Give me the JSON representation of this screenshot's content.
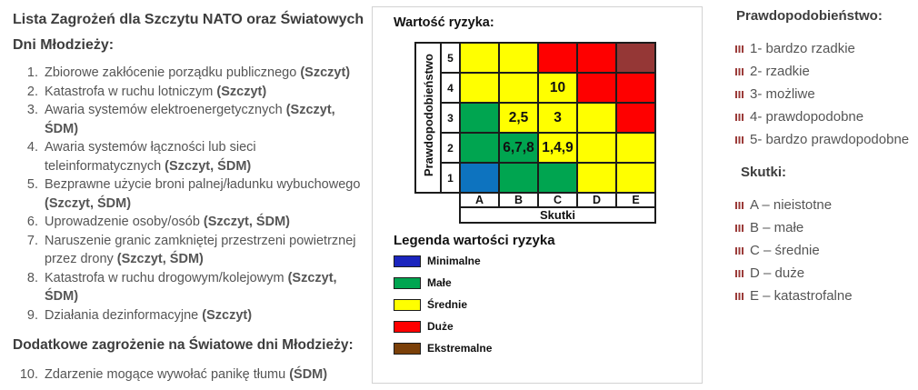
{
  "left": {
    "title_lines": [
      "Lista Zagrożeń dla Szczytu NATO oraz Światowych",
      "Dni Młodzieży:"
    ],
    "items": [
      {
        "number": "1.",
        "text": "Zbiorowe zakłócenie porządku publicznego",
        "tag": "(Szczyt)"
      },
      {
        "number": "2.",
        "text": "Katastrofa w ruchu lotniczym",
        "tag": "(Szczyt)"
      },
      {
        "number": "3.",
        "text": "Awaria systemów elektroenergetycznych",
        "tag": "(Szczyt, ŚDM)"
      },
      {
        "number": "4.",
        "text": "Awaria systemów łączności lub sieci teleinformatycznych",
        "tag": "(Szczyt, ŚDM)"
      },
      {
        "number": "5.",
        "text": "Bezprawne użycie broni palnej/ładunku wybuchowego",
        "tag": "(Szczyt, ŚDM)"
      },
      {
        "number": "6.",
        "text": "Uprowadzenie osoby/osób",
        "tag": "(Szczyt, ŚDM)"
      },
      {
        "number": "7.",
        "text": "Naruszenie granic zamkniętej przestrzeni powietrznej przez drony",
        "tag": "(Szczyt, ŚDM)"
      },
      {
        "number": "8.",
        "text": "Katastrofa w ruchu drogowym/kolejowym",
        "tag": "(Szczyt, ŚDM)"
      },
      {
        "number": "9.",
        "text": "Działania dezinformacyjne",
        "tag": "(Szczyt)"
      }
    ],
    "subtitle": "Dodatkowe zagrożenie na Światowe dni Młodzieży:",
    "additional_items": [
      {
        "number": "10.",
        "text": "Zdarzenie mogące wywołać panikę tłumu",
        "tag": "(ŚDM)"
      }
    ]
  },
  "chart_data": {
    "type": "heatmap",
    "title": "Wartość ryzyka:",
    "xlabel": "Skutki",
    "ylabel": "Prawdopodobieństwo",
    "x_categories": [
      "A",
      "B",
      "C",
      "D",
      "E"
    ],
    "y_categories": [
      "5",
      "4",
      "3",
      "2",
      "1"
    ],
    "rows": [
      {
        "y": "5",
        "levels": [
          "srednie",
          "srednie",
          "duze",
          "duze",
          "ekstremalne"
        ],
        "labels": [
          "",
          "",
          "",
          "",
          ""
        ]
      },
      {
        "y": "4",
        "levels": [
          "srednie",
          "srednie",
          "srednie",
          "duze",
          "duze"
        ],
        "labels": [
          "",
          "",
          "10",
          "",
          ""
        ]
      },
      {
        "y": "3",
        "levels": [
          "male",
          "srednie",
          "srednie",
          "srednie",
          "duze"
        ],
        "labels": [
          "",
          "2,5",
          "3",
          "",
          ""
        ]
      },
      {
        "y": "2",
        "levels": [
          "male",
          "male",
          "srednie",
          "srednie",
          "srednie"
        ],
        "labels": [
          "",
          "6,7,8",
          "1,4,9",
          "",
          ""
        ]
      },
      {
        "y": "1",
        "levels": [
          "minimalne",
          "male",
          "male",
          "srednie",
          "srednie"
        ],
        "labels": [
          "",
          "",
          "",
          "",
          ""
        ]
      }
    ],
    "cell_colors": {
      "minimalne": "#0D73BF",
      "male": "#00A550",
      "srednie": "#FFFF00",
      "duze": "#FE0000",
      "ekstremalne": "#953736"
    },
    "legend_title": "Legenda wartości ryzyka",
    "legend": [
      {
        "label": "Minimalne",
        "color": "#1B25BE"
      },
      {
        "label": "Małe",
        "color": "#00A550"
      },
      {
        "label": "Średnie",
        "color": "#FFFF00"
      },
      {
        "label": "Duże",
        "color": "#FE0000"
      },
      {
        "label": "Ekstremalne",
        "color": "#7B4009"
      }
    ]
  },
  "right": {
    "bullet_color": "#9B3B39",
    "probability": {
      "title": "Prawdopodobieństwo:",
      "items": [
        "1- bardzo rzadkie",
        "2- rzadkie",
        "3- możliwe",
        "4- prawdopodobne",
        "5- bardzo prawdopodobne"
      ]
    },
    "consequences": {
      "title": "Skutki:",
      "items": [
        "A – nieistotne",
        "B – małe",
        "C – średnie",
        "D – duże",
        "E – katastrofalne"
      ]
    }
  }
}
